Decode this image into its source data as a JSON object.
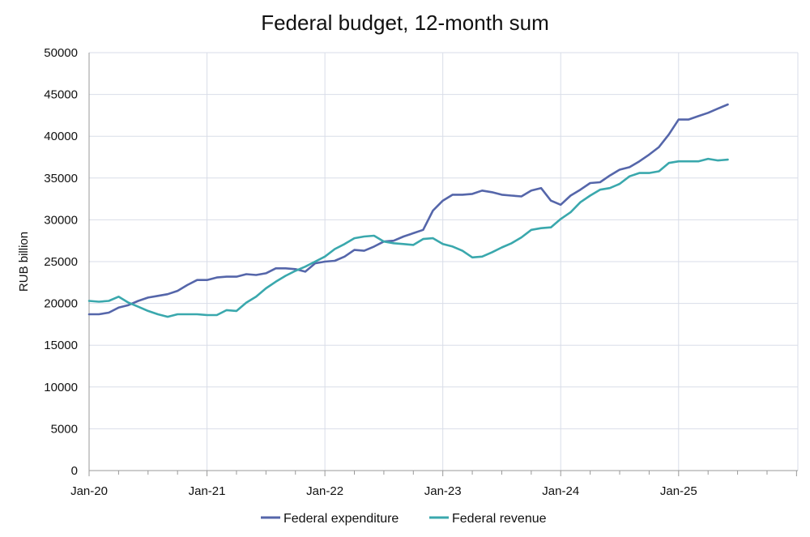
{
  "chart_data": {
    "type": "line",
    "title": "Federal budget, 12-month sum",
    "xlabel": "",
    "ylabel": "RUB billion",
    "ylim": [
      0,
      50000
    ],
    "yticks": [
      0,
      5000,
      10000,
      15000,
      20000,
      25000,
      30000,
      35000,
      40000,
      45000,
      50000
    ],
    "xticks": [
      "Jan-20",
      "Jan-21",
      "Jan-22",
      "Jan-23",
      "Jan-24",
      "Jan-25"
    ],
    "x_start": "Jan-20",
    "x_end": "Jun-25",
    "grid": true,
    "legend_position": "bottom",
    "series": [
      {
        "name": "Federal expenditure",
        "color": "#5566aa",
        "values": [
          18700,
          18700,
          18900,
          19500,
          19800,
          20300,
          20700,
          20900,
          21100,
          21500,
          22200,
          22800,
          22800,
          23100,
          23200,
          23200,
          23500,
          23400,
          23600,
          24200,
          24200,
          24100,
          23800,
          24800,
          25000,
          25100,
          25600,
          26400,
          26300,
          26800,
          27400,
          27500,
          28000,
          28400,
          28800,
          31100,
          32300,
          33000,
          33000,
          33100,
          33500,
          33300,
          33000,
          32900,
          32800,
          33500,
          33800,
          32300,
          31800,
          32900,
          33600,
          34400,
          34500,
          35300,
          36000,
          36300,
          37000,
          37800,
          38700,
          40200,
          42000,
          42000,
          42400,
          42800,
          43300,
          43800
        ]
      },
      {
        "name": "Federal revenue",
        "color": "#3aa8ad",
        "values": [
          20300,
          20200,
          20300,
          20800,
          20100,
          19600,
          19100,
          18700,
          18400,
          18700,
          18700,
          18700,
          18600,
          18600,
          19200,
          19100,
          20100,
          20800,
          21800,
          22600,
          23300,
          23900,
          24400,
          25000,
          25600,
          26500,
          27100,
          27800,
          28000,
          28100,
          27400,
          27200,
          27100,
          27000,
          27700,
          27800,
          27100,
          26800,
          26300,
          25500,
          25600,
          26100,
          26700,
          27200,
          27900,
          28800,
          29000,
          29100,
          30100,
          30900,
          32100,
          32900,
          33600,
          33800,
          34300,
          35200,
          35600,
          35600,
          35800,
          36800,
          37000,
          37000,
          37000,
          37300,
          37100,
          37200
        ]
      }
    ]
  }
}
